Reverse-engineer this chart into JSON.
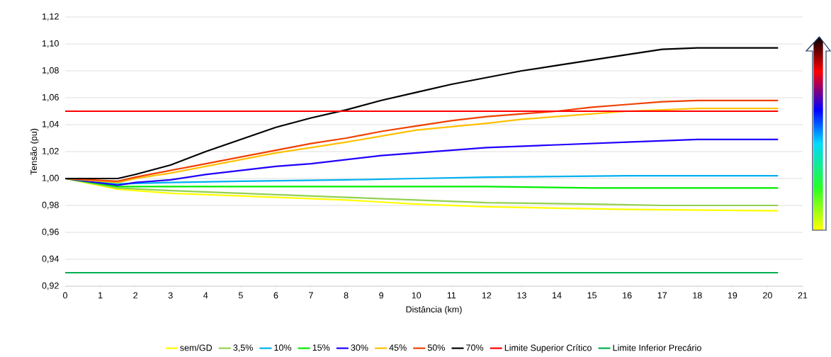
{
  "chart_data": {
    "type": "line",
    "xlabel": "Distância (km)",
    "ylabel": "Tensão (pu)",
    "xlim": [
      0,
      21
    ],
    "xticks": [
      0,
      1,
      2,
      3,
      4,
      5,
      6,
      7,
      8,
      9,
      10,
      11,
      12,
      13,
      14,
      15,
      16,
      17,
      18,
      19,
      20,
      21
    ],
    "ylim": [
      0.92,
      1.12
    ],
    "yticks": [
      {
        "value": 0.92,
        "label": "0,92"
      },
      {
        "value": 0.94,
        "label": "0,94"
      },
      {
        "value": 0.96,
        "label": "0,96"
      },
      {
        "value": 0.98,
        "label": "0,98"
      },
      {
        "value": 1.0,
        "label": "1,00"
      },
      {
        "value": 1.02,
        "label": "1,02"
      },
      {
        "value": 1.04,
        "label": "1,04"
      },
      {
        "value": 1.06,
        "label": "1,06"
      },
      {
        "value": 1.08,
        "label": "1,08"
      },
      {
        "value": 1.1,
        "label": "1,10"
      },
      {
        "value": 1.12,
        "label": "1,12"
      }
    ],
    "grid": "y",
    "legend": "bottom",
    "series": [
      {
        "name": "sem/GD",
        "color": "#ffff00",
        "x": [
          0,
          1.5,
          3,
          5,
          8,
          10,
          12,
          14,
          16,
          20.3
        ],
        "values": [
          1.0,
          0.992,
          0.989,
          0.987,
          0.984,
          0.981,
          0.979,
          0.978,
          0.977,
          0.976
        ]
      },
      {
        "name": "3,5%",
        "color": "#92d050",
        "x": [
          0,
          1.5,
          3,
          5,
          8,
          10,
          12,
          15,
          17,
          20.3
        ],
        "values": [
          1.0,
          0.993,
          0.991,
          0.989,
          0.986,
          0.984,
          0.982,
          0.981,
          0.98,
          0.98
        ]
      },
      {
        "name": "10%",
        "color": "#00b0f0",
        "x": [
          0,
          1.5,
          3,
          5,
          8,
          10,
          12,
          16,
          20.3
        ],
        "values": [
          1.0,
          0.996,
          0.997,
          0.998,
          0.999,
          1.0,
          1.001,
          1.002,
          1.002
        ]
      },
      {
        "name": "15%",
        "color": "#00ee00",
        "x": [
          0,
          1.5,
          3,
          8,
          12,
          15,
          20.3
        ],
        "values": [
          1.0,
          0.994,
          0.994,
          0.994,
          0.994,
          0.993,
          0.993
        ]
      },
      {
        "name": "30%",
        "color": "#2000ff",
        "x": [
          0,
          1.5,
          2,
          3,
          4,
          5,
          6,
          7,
          8,
          9,
          10,
          11,
          12,
          14,
          16,
          18,
          20.3
        ],
        "values": [
          1.0,
          0.995,
          0.997,
          0.999,
          1.003,
          1.006,
          1.009,
          1.011,
          1.014,
          1.017,
          1.019,
          1.021,
          1.023,
          1.025,
          1.027,
          1.029,
          1.029
        ]
      },
      {
        "name": "45%",
        "color": "#ffc000",
        "x": [
          0,
          1.5,
          2,
          3,
          4,
          5,
          6,
          7,
          8,
          10,
          12,
          13,
          16,
          18,
          20.3
        ],
        "values": [
          1.0,
          0.997,
          1.0,
          1.004,
          1.009,
          1.014,
          1.019,
          1.023,
          1.027,
          1.036,
          1.041,
          1.044,
          1.05,
          1.052,
          1.052
        ]
      },
      {
        "name": "50%",
        "color": "#f04000",
        "x": [
          0,
          1.5,
          2,
          3,
          4,
          5,
          6,
          7,
          8,
          9,
          10,
          11,
          12,
          13,
          14,
          15,
          16,
          17,
          18,
          20.3
        ],
        "values": [
          1.0,
          0.998,
          1.001,
          1.006,
          1.011,
          1.016,
          1.021,
          1.026,
          1.03,
          1.035,
          1.039,
          1.043,
          1.046,
          1.048,
          1.05,
          1.053,
          1.055,
          1.057,
          1.058,
          1.058
        ]
      },
      {
        "name": "70%",
        "color": "#000000",
        "x": [
          0,
          1.5,
          2,
          3,
          4,
          5,
          6,
          7,
          8,
          9,
          10,
          11,
          12,
          13,
          14,
          15,
          16,
          17,
          18,
          20.3
        ],
        "values": [
          1.0,
          1.0,
          1.003,
          1.01,
          1.02,
          1.029,
          1.038,
          1.045,
          1.051,
          1.058,
          1.064,
          1.07,
          1.075,
          1.08,
          1.084,
          1.088,
          1.092,
          1.096,
          1.097,
          1.097
        ]
      },
      {
        "name": "Limite Superior Crítico",
        "color": "#ff0000",
        "x": [
          0,
          20.3
        ],
        "values": [
          1.05,
          1.05
        ]
      },
      {
        "name": "Limite Inferior Precário",
        "color": "#00b050",
        "x": [
          0,
          20.3
        ],
        "values": [
          0.93,
          0.93
        ]
      }
    ]
  }
}
